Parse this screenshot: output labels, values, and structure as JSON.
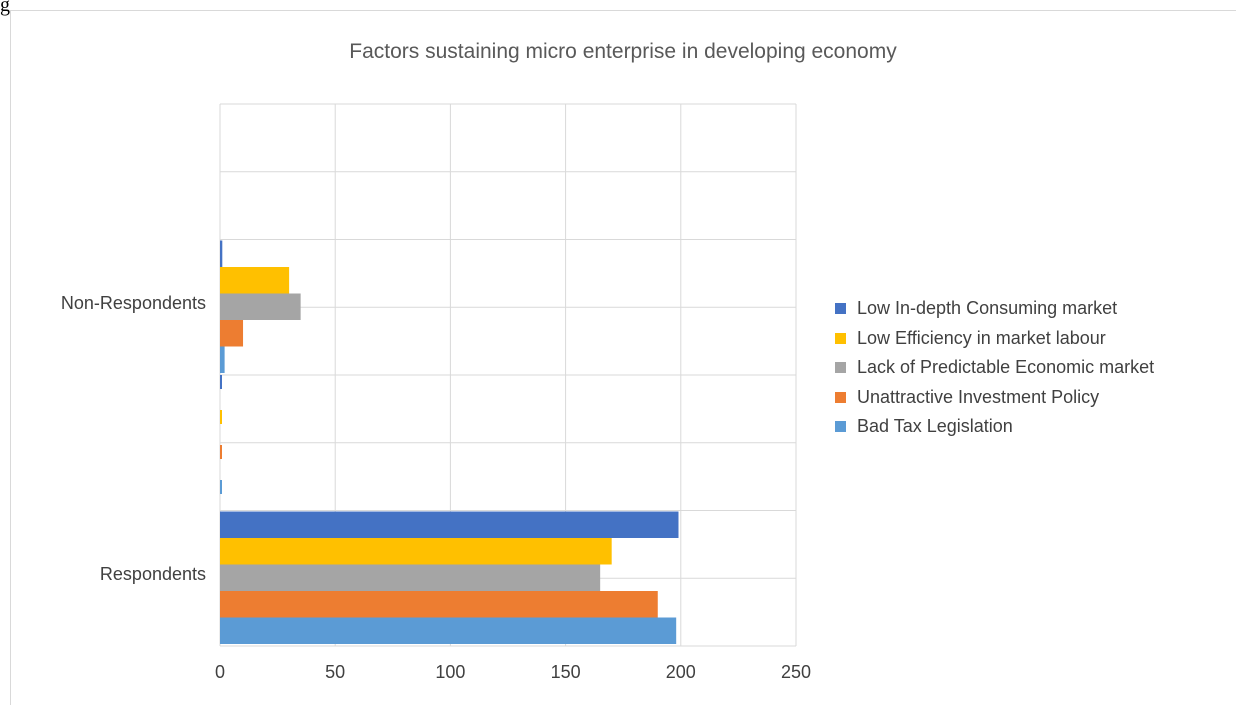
{
  "corner_text": "g",
  "chart_data": {
    "type": "bar",
    "orientation": "horizontal",
    "title": "Factors sustaining micro enterprise in developing economy",
    "xlabel": "",
    "ylabel": "",
    "categories": [
      "Respondents",
      "Non-Respondents"
    ],
    "xlim": [
      0,
      250
    ],
    "xticks": [
      0,
      50,
      100,
      150,
      200,
      250
    ],
    "grid": true,
    "legend_position": "right",
    "series": [
      {
        "name": "Bad Tax Legislation",
        "color": "#5b9bd5",
        "values": [
          198,
          2
        ]
      },
      {
        "name": "Unattractive Investment Policy",
        "color": "#ed7d31",
        "values": [
          190,
          10
        ]
      },
      {
        "name": "Lack of Predictable Economic market",
        "color": "#a5a5a5",
        "values": [
          165,
          35
        ]
      },
      {
        "name": "Low Efficiency in market labour",
        "color": "#ffc000",
        "values": [
          170,
          30
        ]
      },
      {
        "name": "Low In-depth Consuming market",
        "color": "#4472c4",
        "values": [
          199,
          1
        ]
      }
    ],
    "legend_order": [
      4,
      3,
      2,
      1,
      0
    ]
  }
}
